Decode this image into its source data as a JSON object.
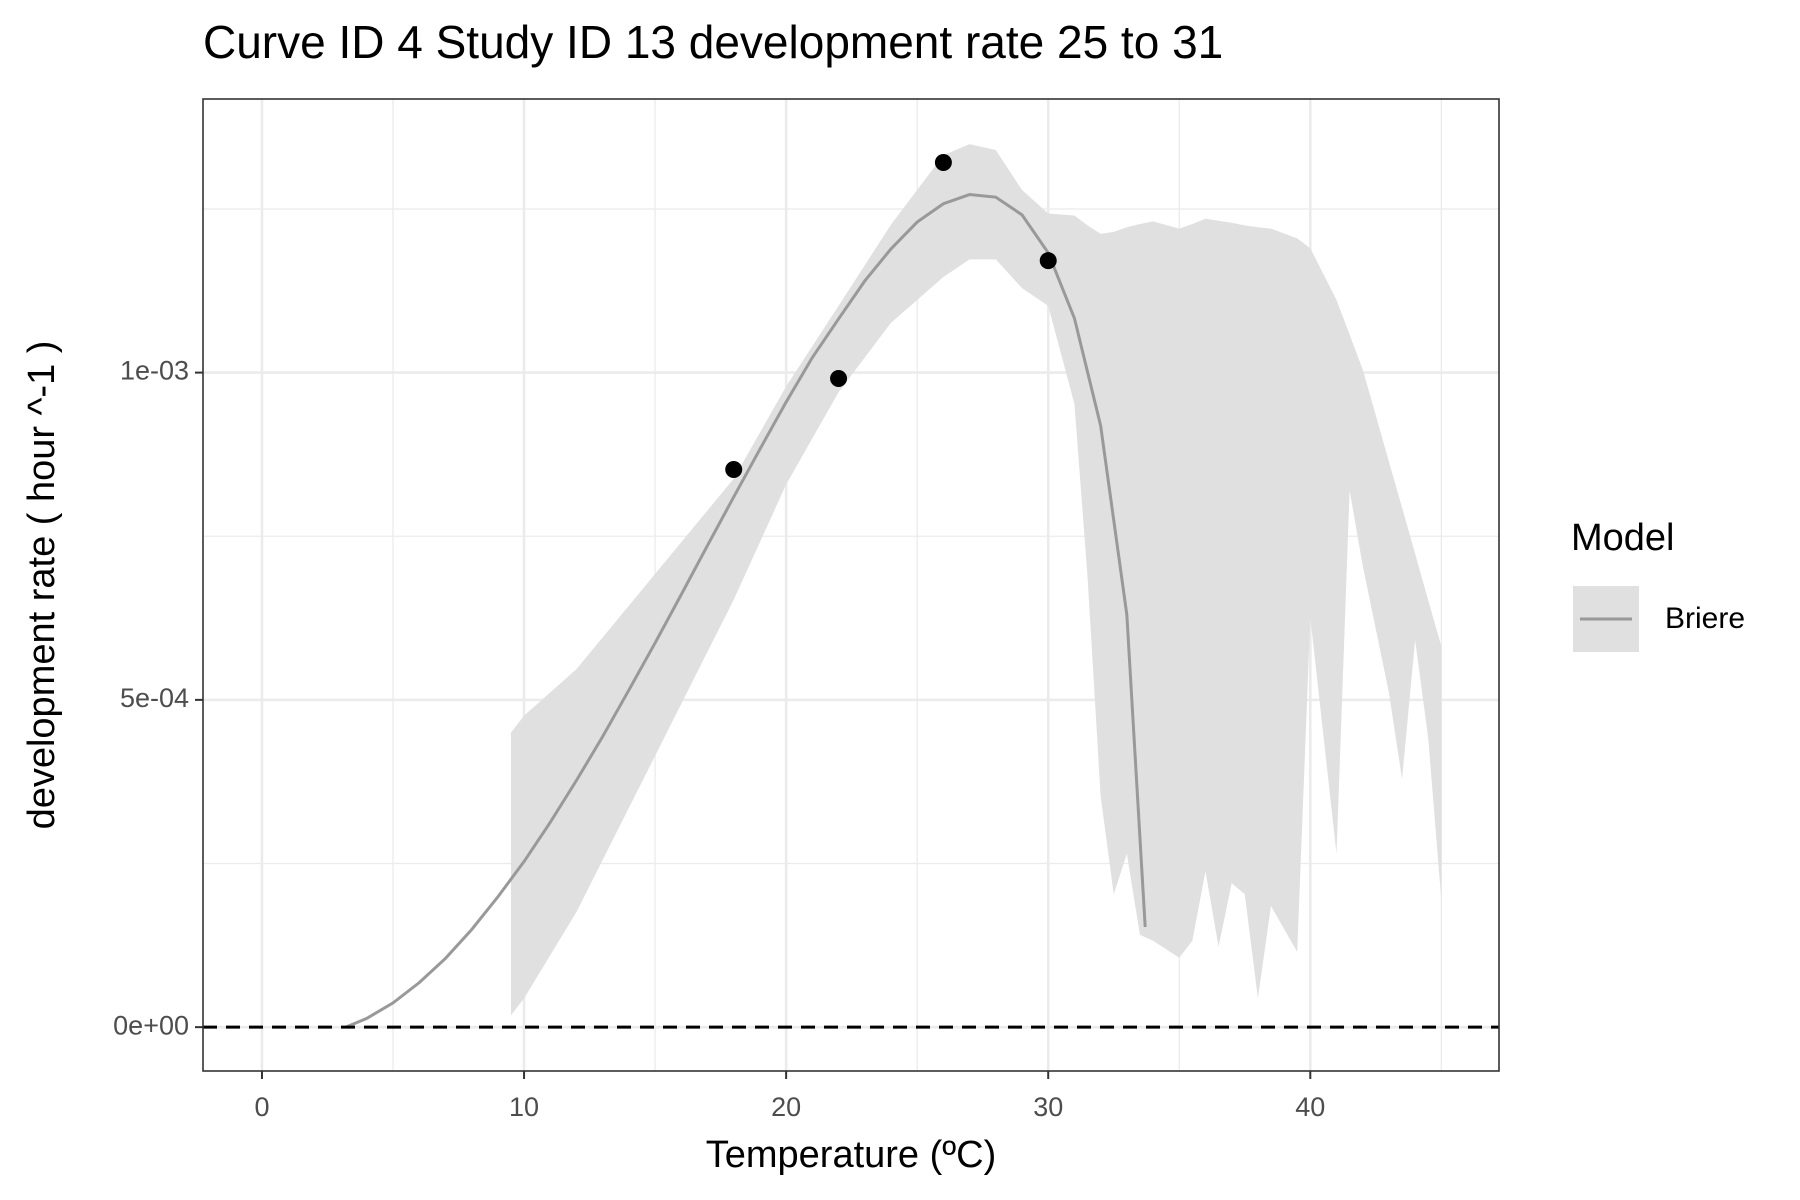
{
  "chart_data": {
    "type": "line",
    "title": "Curve ID 4 Study ID 13 development rate 25 to 31",
    "x_label": "Temperature (ºC)",
    "y_label": "development rate ( hour ^-1 )",
    "xlim": [
      -2.25,
      47.2
    ],
    "ylim": [
      -6.7e-05,
      0.001418
    ],
    "xticks": [
      0,
      10,
      20,
      30,
      40
    ],
    "yticks": [
      {
        "value": 0,
        "label": "0e+00"
      },
      {
        "value": 0.0005,
        "label": "5e-04"
      },
      {
        "value": 0.001,
        "label": "1e-03"
      }
    ],
    "x_minor_ticks": [
      5,
      15,
      25,
      35,
      45
    ],
    "y_minor_ticks": [
      0.00025,
      0.00075,
      0.00125
    ],
    "grid": true,
    "reference_line": 0,
    "legend_title": "Model",
    "legend": "right",
    "series": [
      {
        "name": "Briere",
        "color": "#999999",
        "x": [
          3.2,
          4,
          5,
          6,
          7,
          8,
          9,
          10,
          11,
          12,
          13,
          14,
          15,
          16,
          17,
          18,
          19,
          20,
          21,
          22,
          23,
          24,
          25,
          26,
          27,
          28,
          29,
          30,
          31,
          32,
          33,
          33.7
        ],
        "values": [
          0,
          1.34e-05,
          3.7e-05,
          6.8e-05,
          0.000105,
          0.000149,
          0.000199,
          0.000253,
          0.000313,
          0.000377,
          0.000444,
          0.000515,
          0.000587,
          0.000661,
          0.000736,
          0.00081,
          0.000883,
          0.000955,
          0.001023,
          0.001082,
          0.00114,
          0.001189,
          0.00123,
          0.001258,
          0.001272,
          0.001268,
          0.001241,
          0.001183,
          0.001083,
          0.000919,
          0.00063,
          0.000153
        ],
        "ribbon": {
          "color": "#e0e0e0",
          "x": [
            9.5,
            10,
            12,
            14,
            16,
            18,
            20,
            22,
            24,
            26,
            27,
            28,
            29,
            30,
            31,
            31.5,
            32,
            32.5,
            33,
            33.5,
            34,
            35,
            35.5,
            36,
            36.5,
            37,
            37.5,
            38,
            38.5,
            39.5,
            40,
            41,
            41.5,
            42,
            43,
            43.5,
            44,
            44.5,
            45
          ],
          "upper": [
            0.00045,
            0.000476,
            0.000547,
            0.000644,
            0.000741,
            0.000838,
            0.000979,
            0.001102,
            0.001226,
            0.001332,
            0.001349,
            0.00134,
            0.001279,
            0.001243,
            0.00124,
            0.001225,
            0.001212,
            0.001215,
            0.001222,
            0.001227,
            0.001231,
            0.00122,
            0.001227,
            0.001235,
            0.001232,
            0.001229,
            0.001225,
            0.001222,
            0.00122,
            0.001205,
            0.00119,
            0.001111,
            0.001058,
            0.001005,
            0.000864,
            0.000794,
            0.000723,
            0.000652,
            0.000582
          ],
          "lower": [
            1.8e-05,
            4.4e-05,
            0.000176,
            0.000335,
            0.000494,
            0.000653,
            0.000829,
            0.00097,
            0.001076,
            0.001146,
            0.001173,
            0.001173,
            0.001129,
            0.001102,
            0.000952,
            0.000688,
            0.000353,
            0.000203,
            0.000265,
            0.000141,
            0.000132,
            0.000106,
            0.000132,
            0.000238,
            0.000123,
            0.00022,
            0.000203,
            4.4e-05,
            0.000185,
            0.000115,
            0.000626,
            0.000265,
            0.00082,
            0.000705,
            0.000511,
            0.000379,
            0.000591,
            0.000441,
            0.000194
          ]
        }
      }
    ],
    "points": {
      "color": "#000000",
      "x": [
        18,
        22,
        26,
        30
      ],
      "values": [
        0.000852,
        0.000991,
        0.001321,
        0.001171
      ]
    }
  }
}
